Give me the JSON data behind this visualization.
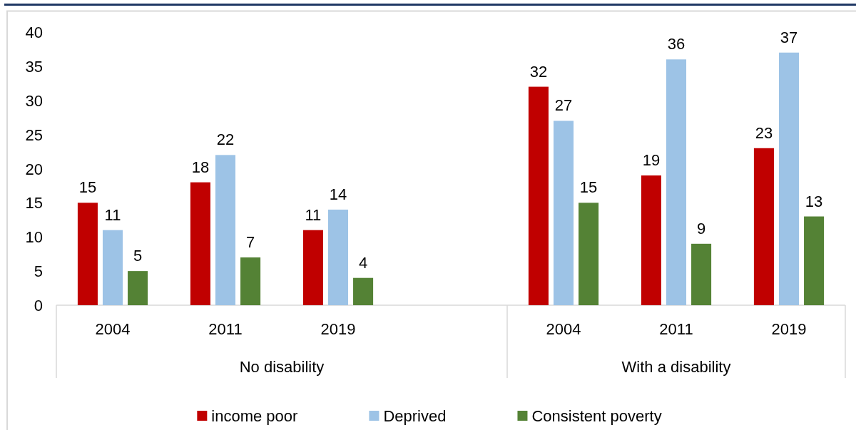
{
  "chart_data": {
    "type": "bar",
    "categories": [
      "2004",
      "2011",
      "2019",
      null,
      "2004",
      "2011",
      "2019"
    ],
    "series": [
      {
        "name": "income poor",
        "color": "#c00000",
        "values": [
          15,
          18,
          11,
          null,
          32,
          19,
          23
        ]
      },
      {
        "name": "Deprived",
        "color": "#9dc3e6",
        "values": [
          11,
          22,
          14,
          null,
          27,
          36,
          37
        ]
      },
      {
        "name": "Consistent poverty",
        "color": "#548235",
        "values": [
          5,
          7,
          4,
          null,
          15,
          9,
          13
        ]
      }
    ],
    "ylim": [
      0,
      40
    ],
    "yticks": [
      0,
      5,
      10,
      15,
      20,
      25,
      30,
      35,
      40
    ],
    "data_labels": true,
    "legend": "bottom",
    "annotations": [
      "No disability",
      "With a disability"
    ]
  }
}
